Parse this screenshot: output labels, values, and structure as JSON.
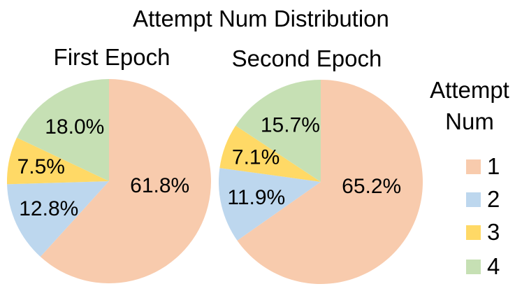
{
  "title": "Attempt Num Distribution",
  "legend": {
    "title_lines": [
      "Attempt",
      "Num"
    ],
    "items": [
      {
        "label": "1",
        "color": "#F8CBAD"
      },
      {
        "label": "2",
        "color": "#BDD7EE"
      },
      {
        "label": "3",
        "color": "#FFD966"
      },
      {
        "label": "4",
        "color": "#C6E0B4"
      }
    ]
  },
  "chart_data": [
    {
      "type": "pie",
      "title": "First Epoch",
      "labels": [
        "1",
        "2",
        "3",
        "4"
      ],
      "values": [
        61.8,
        12.8,
        7.5,
        18.0
      ],
      "unit": "%",
      "colors": [
        "#F8CBAD",
        "#BDD7EE",
        "#FFD966",
        "#C6E0B4"
      ],
      "start_angle_deg_from_top": 0,
      "direction": "clockwise",
      "label_format": "one-decimal-percent"
    },
    {
      "type": "pie",
      "title": "Second Epoch",
      "labels": [
        "1",
        "2",
        "3",
        "4"
      ],
      "values": [
        65.2,
        11.9,
        7.1,
        15.7
      ],
      "unit": "%",
      "colors": [
        "#F8CBAD",
        "#BDD7EE",
        "#FFD966",
        "#C6E0B4"
      ],
      "start_angle_deg_from_top": 0,
      "direction": "clockwise",
      "label_format": "one-decimal-percent"
    }
  ]
}
